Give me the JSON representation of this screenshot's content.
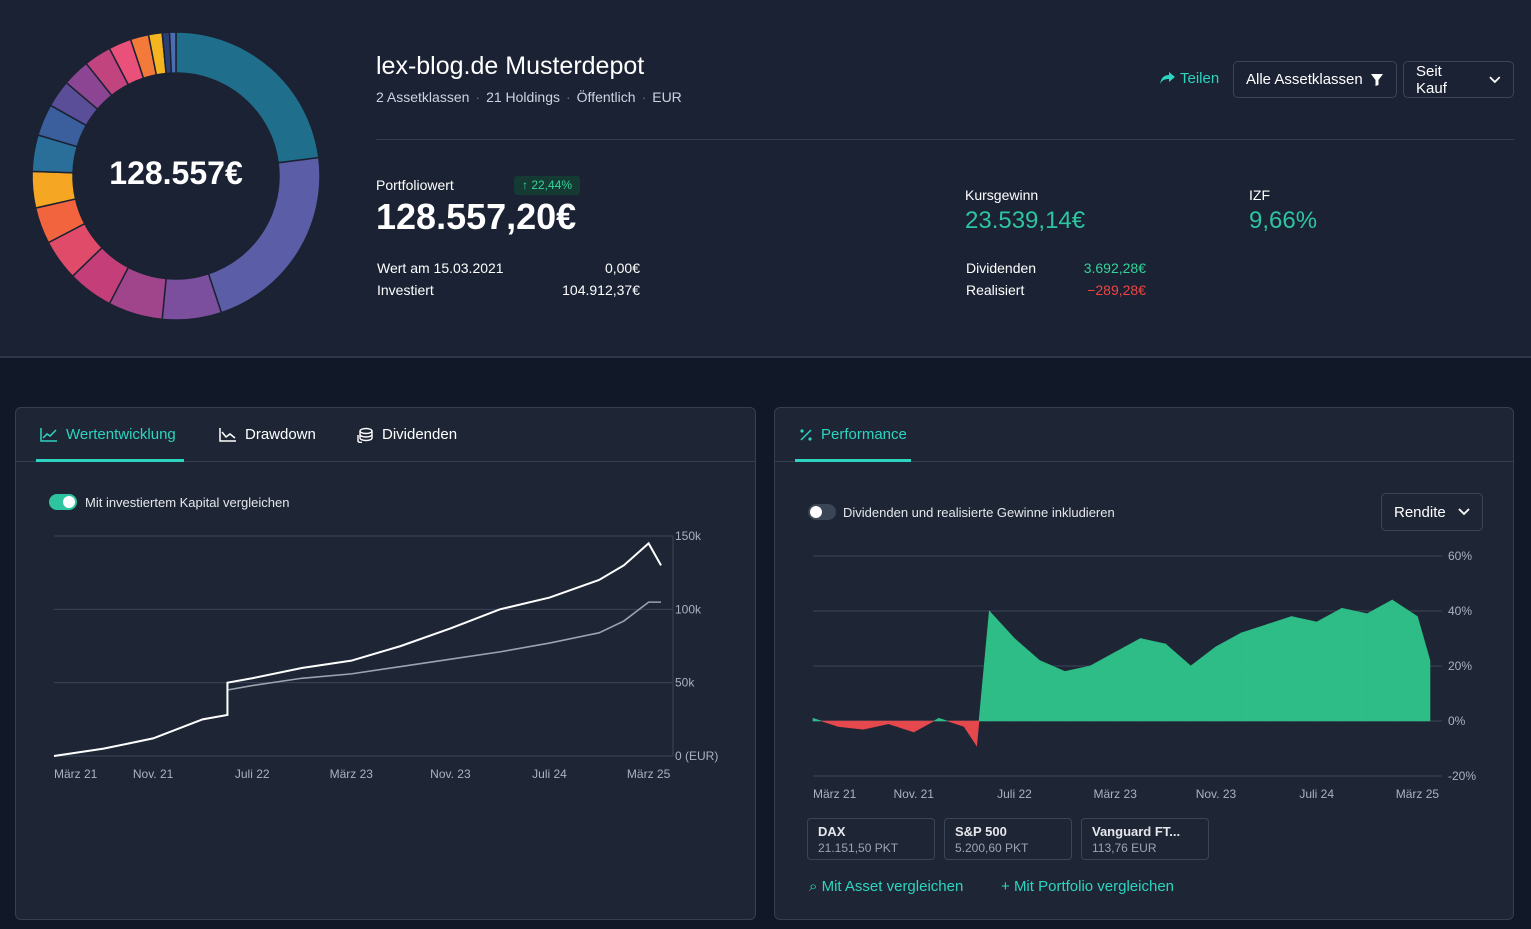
{
  "portfolio": {
    "name": "lex-blog.de Musterdepot",
    "meta": [
      "2 Assetklassen",
      "21 Holdings",
      "Öffentlich",
      "EUR"
    ],
    "donut_center": "128.557€",
    "allocation_colors": [
      "#1f6e8c",
      "#5b5ea6",
      "#7b4f9d",
      "#a0448c",
      "#c43f7a",
      "#e04b6a",
      "#f2643e",
      "#f5a623",
      "#2a6f9a",
      "#3a5f9c",
      "#5a4e98",
      "#8c4593",
      "#c1447f",
      "#e9507a",
      "#f47a3b",
      "#f4b521",
      "#2c3f73",
      "#4c6db0"
    ],
    "allocation_values": [
      22.5,
      21.5,
      6.5,
      6,
      5,
      4.5,
      4,
      4,
      4,
      3.5,
      3,
      3,
      3,
      2.5,
      2,
      1.5,
      0.8,
      0.7
    ]
  },
  "actions": {
    "share": "Teilen",
    "asset_filter": "Alle Assetklassen",
    "range": "Seit Kauf"
  },
  "stats": {
    "portfolio_label": "Portfoliowert",
    "portfolio_change": "↑ 22,44%",
    "portfolio_value": "128.557,20€",
    "start_label": "Wert am 15.03.2021",
    "start_value": "0,00€",
    "invested_label": "Investiert",
    "invested_value": "104.912,37€",
    "gain_label": "Kursgewinn",
    "gain_value": "23.539,14€",
    "irr_label": "IZF",
    "irr_value": "9,66%",
    "div_label": "Dividenden",
    "div_value": "3.692,28€",
    "realized_label": "Realisiert",
    "realized_value": "−289,28€"
  },
  "left_card": {
    "tabs": [
      "Wertentwicklung",
      "Drawdown",
      "Dividenden"
    ],
    "toggle_label": "Mit investiertem Kapital vergleichen",
    "toggle_on": true,
    "y_ticks": [
      "150k",
      "100k",
      "50k",
      "0 (EUR)"
    ],
    "x_ticks": [
      "März 21",
      "Nov. 21",
      "Juli 22",
      "März 23",
      "Nov. 23",
      "Juli 24",
      "März 25"
    ]
  },
  "right_card": {
    "tab": "Performance",
    "toggle_label": "Dividenden und realisierte Gewinne inkludieren",
    "toggle_on": false,
    "dropdown": "Rendite",
    "y_ticks": [
      "60%",
      "40%",
      "20%",
      "0%",
      "-20%"
    ],
    "x_ticks": [
      "März 21",
      "Nov. 21",
      "Juli 22",
      "März 23",
      "Nov. 23",
      "Juli 24",
      "März 25"
    ],
    "benchmarks": [
      {
        "name": "DAX",
        "value": "21.151,50 PKT"
      },
      {
        "name": "S&P 500",
        "value": "5.200,60 PKT"
      },
      {
        "name": "Vanguard FT...",
        "value": "113,76 EUR"
      }
    ],
    "compare_asset": "Mit Asset vergleichen",
    "compare_portfolio": "Mit Portfolio vergleichen"
  },
  "chart_data": [
    {
      "type": "line",
      "title": "",
      "xlabel": "",
      "ylabel": "",
      "ylim": [
        0,
        150000
      ],
      "x": [
        "2021-03",
        "2021-07",
        "2021-11",
        "2022-03",
        "2022-05",
        "2022-05",
        "2022-07",
        "2022-11",
        "2023-03",
        "2023-07",
        "2023-11",
        "2024-03",
        "2024-07",
        "2024-11",
        "2025-01",
        "2025-03",
        "2025-04"
      ],
      "series": [
        {
          "name": "",
          "values": [
            0,
            5000,
            12000,
            25000,
            28000,
            50000,
            53000,
            60000,
            65000,
            75000,
            87000,
            100000,
            108000,
            120000,
            130000,
            145000,
            130000
          ]
        },
        {
          "name": "",
          "values": [
            0,
            5000,
            12000,
            25000,
            28000,
            45000,
            48000,
            53000,
            56000,
            61000,
            66000,
            71000,
            77000,
            84000,
            92000,
            104912,
            104912
          ]
        }
      ],
      "grid": true
    },
    {
      "type": "area",
      "title": "",
      "xlabel": "",
      "ylabel": "",
      "ylim": [
        -20,
        60
      ],
      "x": [
        "2021-03",
        "2021-05",
        "2021-07",
        "2021-09",
        "2021-11",
        "2022-01",
        "2022-03",
        "2022-04",
        "2022-05",
        "2022-07",
        "2022-09",
        "2022-11",
        "2023-01",
        "2023-03",
        "2023-05",
        "2023-07",
        "2023-09",
        "2023-11",
        "2024-01",
        "2024-03",
        "2024-05",
        "2024-07",
        "2024-09",
        "2024-11",
        "2025-01",
        "2025-03",
        "2025-04"
      ],
      "series": [
        {
          "name": "",
          "values": [
            1,
            -2,
            -3,
            -1,
            -4,
            1,
            -2,
            -9,
            40,
            30,
            22,
            18,
            20,
            25,
            30,
            28,
            20,
            27,
            32,
            35,
            38,
            36,
            41,
            39,
            44,
            38,
            22
          ]
        }
      ],
      "grid": true
    }
  ]
}
